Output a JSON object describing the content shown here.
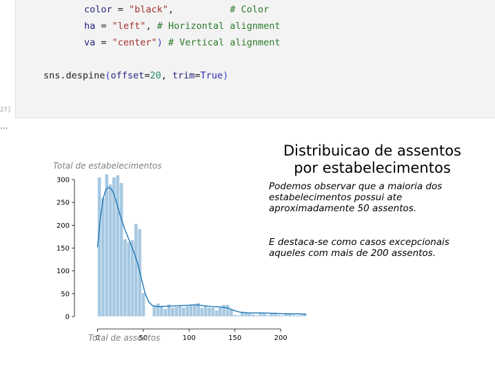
{
  "code": {
    "line1": {
      "name": "color",
      "eq": " = ",
      "str": "\"black\"",
      "tail": ",",
      "comment": "# Color"
    },
    "line2": {
      "name": "ha",
      "eq": " = ",
      "str": "\"left\"",
      "tail": ", ",
      "comment": "# Horizontal alignment"
    },
    "line3": {
      "name": "va",
      "eq": " = ",
      "str": "\"center\"",
      "tail": ") ",
      "comment": "# Vertical alignment"
    },
    "line4": {
      "fn": "sns.despine",
      "open": "(",
      "arg1": "offset",
      "eq1": "=",
      "val1": "20",
      "sep": ", ",
      "arg2": "trim",
      "eq2": "=",
      "val2": "True",
      "close": ")"
    }
  },
  "exec_count": "27]",
  "ellipsis": "...",
  "chart_data": {
    "type": "bar",
    "title_line1": "Distribuicao de assentos",
    "title_line2": "por estabelecimentos",
    "annotation1": [
      "Podemos observar que a maioria dos",
      "estabelecimentos possui ate",
      "aproximadamente 50 assentos."
    ],
    "annotation2": [
      "E destaca-se como casos excepcionais",
      "aqueles com mais de 200 assentos."
    ],
    "xlabel": "Total de assentos",
    "ylabel": "Total de estabelecimentos",
    "xlim": [
      0,
      230
    ],
    "ylim": [
      0,
      300
    ],
    "xticks": [
      0,
      50,
      100,
      150,
      200
    ],
    "yticks": [
      0,
      50,
      100,
      150,
      200,
      250,
      300
    ],
    "bar_color": "#a6c8e2",
    "kde_color": "#1f77b4",
    "bins": [
      {
        "x0": 0,
        "x1": 4,
        "count": 305
      },
      {
        "x0": 4,
        "x1": 8,
        "count": 260
      },
      {
        "x0": 8,
        "x1": 12,
        "count": 312
      },
      {
        "x0": 12,
        "x1": 16,
        "count": 290
      },
      {
        "x0": 16,
        "x1": 20,
        "count": 305
      },
      {
        "x0": 20,
        "x1": 24,
        "count": 310
      },
      {
        "x0": 24,
        "x1": 28,
        "count": 293
      },
      {
        "x0": 28,
        "x1": 32,
        "count": 170
      },
      {
        "x0": 32,
        "x1": 36,
        "count": 163
      },
      {
        "x0": 36,
        "x1": 40,
        "count": 168
      },
      {
        "x0": 40,
        "x1": 44,
        "count": 203
      },
      {
        "x0": 44,
        "x1": 48,
        "count": 192
      },
      {
        "x0": 48,
        "x1": 52,
        "count": 52
      },
      {
        "x0": 52,
        "x1": 56,
        "count": 0
      },
      {
        "x0": 56,
        "x1": 60,
        "count": 0
      },
      {
        "x0": 60,
        "x1": 64,
        "count": 25
      },
      {
        "x0": 64,
        "x1": 68,
        "count": 29
      },
      {
        "x0": 68,
        "x1": 72,
        "count": 24
      },
      {
        "x0": 72,
        "x1": 76,
        "count": 17
      },
      {
        "x0": 76,
        "x1": 80,
        "count": 27
      },
      {
        "x0": 80,
        "x1": 84,
        "count": 20
      },
      {
        "x0": 84,
        "x1": 88,
        "count": 22
      },
      {
        "x0": 88,
        "x1": 92,
        "count": 25
      },
      {
        "x0": 92,
        "x1": 96,
        "count": 20
      },
      {
        "x0": 96,
        "x1": 100,
        "count": 23
      },
      {
        "x0": 100,
        "x1": 104,
        "count": 25
      },
      {
        "x0": 104,
        "x1": 108,
        "count": 27
      },
      {
        "x0": 108,
        "x1": 112,
        "count": 30
      },
      {
        "x0": 112,
        "x1": 116,
        "count": 20
      },
      {
        "x0": 116,
        "x1": 120,
        "count": 25
      },
      {
        "x0": 120,
        "x1": 124,
        "count": 20
      },
      {
        "x0": 124,
        "x1": 128,
        "count": 20
      },
      {
        "x0": 128,
        "x1": 132,
        "count": 14
      },
      {
        "x0": 132,
        "x1": 136,
        "count": 20
      },
      {
        "x0": 136,
        "x1": 140,
        "count": 26
      },
      {
        "x0": 140,
        "x1": 144,
        "count": 26
      },
      {
        "x0": 144,
        "x1": 148,
        "count": 16
      },
      {
        "x0": 148,
        "x1": 152,
        "count": 4
      },
      {
        "x0": 152,
        "x1": 156,
        "count": 3
      },
      {
        "x0": 156,
        "x1": 160,
        "count": 9
      },
      {
        "x0": 160,
        "x1": 164,
        "count": 8
      },
      {
        "x0": 164,
        "x1": 168,
        "count": 7
      },
      {
        "x0": 168,
        "x1": 172,
        "count": 5
      },
      {
        "x0": 172,
        "x1": 176,
        "count": 3
      },
      {
        "x0": 176,
        "x1": 180,
        "count": 8
      },
      {
        "x0": 180,
        "x1": 184,
        "count": 7
      },
      {
        "x0": 184,
        "x1": 188,
        "count": 3
      },
      {
        "x0": 188,
        "x1": 192,
        "count": 8
      },
      {
        "x0": 192,
        "x1": 196,
        "count": 9
      },
      {
        "x0": 196,
        "x1": 200,
        "count": 4
      },
      {
        "x0": 200,
        "x1": 204,
        "count": 3
      },
      {
        "x0": 204,
        "x1": 208,
        "count": 7
      },
      {
        "x0": 208,
        "x1": 212,
        "count": 6
      },
      {
        "x0": 212,
        "x1": 216,
        "count": 4
      },
      {
        "x0": 216,
        "x1": 220,
        "count": 3
      },
      {
        "x0": 220,
        "x1": 224,
        "count": 4
      },
      {
        "x0": 224,
        "x1": 228,
        "count": 7
      }
    ],
    "kde": [
      [
        0,
        152
      ],
      [
        3,
        215
      ],
      [
        6,
        258
      ],
      [
        9,
        278
      ],
      [
        12,
        283
      ],
      [
        15,
        280
      ],
      [
        18,
        268
      ],
      [
        21,
        248
      ],
      [
        25,
        220
      ],
      [
        30,
        190
      ],
      [
        35,
        165
      ],
      [
        40,
        140
      ],
      [
        44,
        115
      ],
      [
        48,
        82
      ],
      [
        52,
        50
      ],
      [
        56,
        32
      ],
      [
        60,
        24
      ],
      [
        65,
        22
      ],
      [
        70,
        22
      ],
      [
        80,
        23
      ],
      [
        90,
        24
      ],
      [
        100,
        25
      ],
      [
        108,
        26
      ],
      [
        115,
        24
      ],
      [
        125,
        22
      ],
      [
        135,
        21
      ],
      [
        142,
        19
      ],
      [
        148,
        14
      ],
      [
        155,
        10
      ],
      [
        165,
        8
      ],
      [
        180,
        8
      ],
      [
        195,
        7
      ],
      [
        210,
        6
      ],
      [
        220,
        6
      ],
      [
        228,
        5
      ]
    ]
  }
}
